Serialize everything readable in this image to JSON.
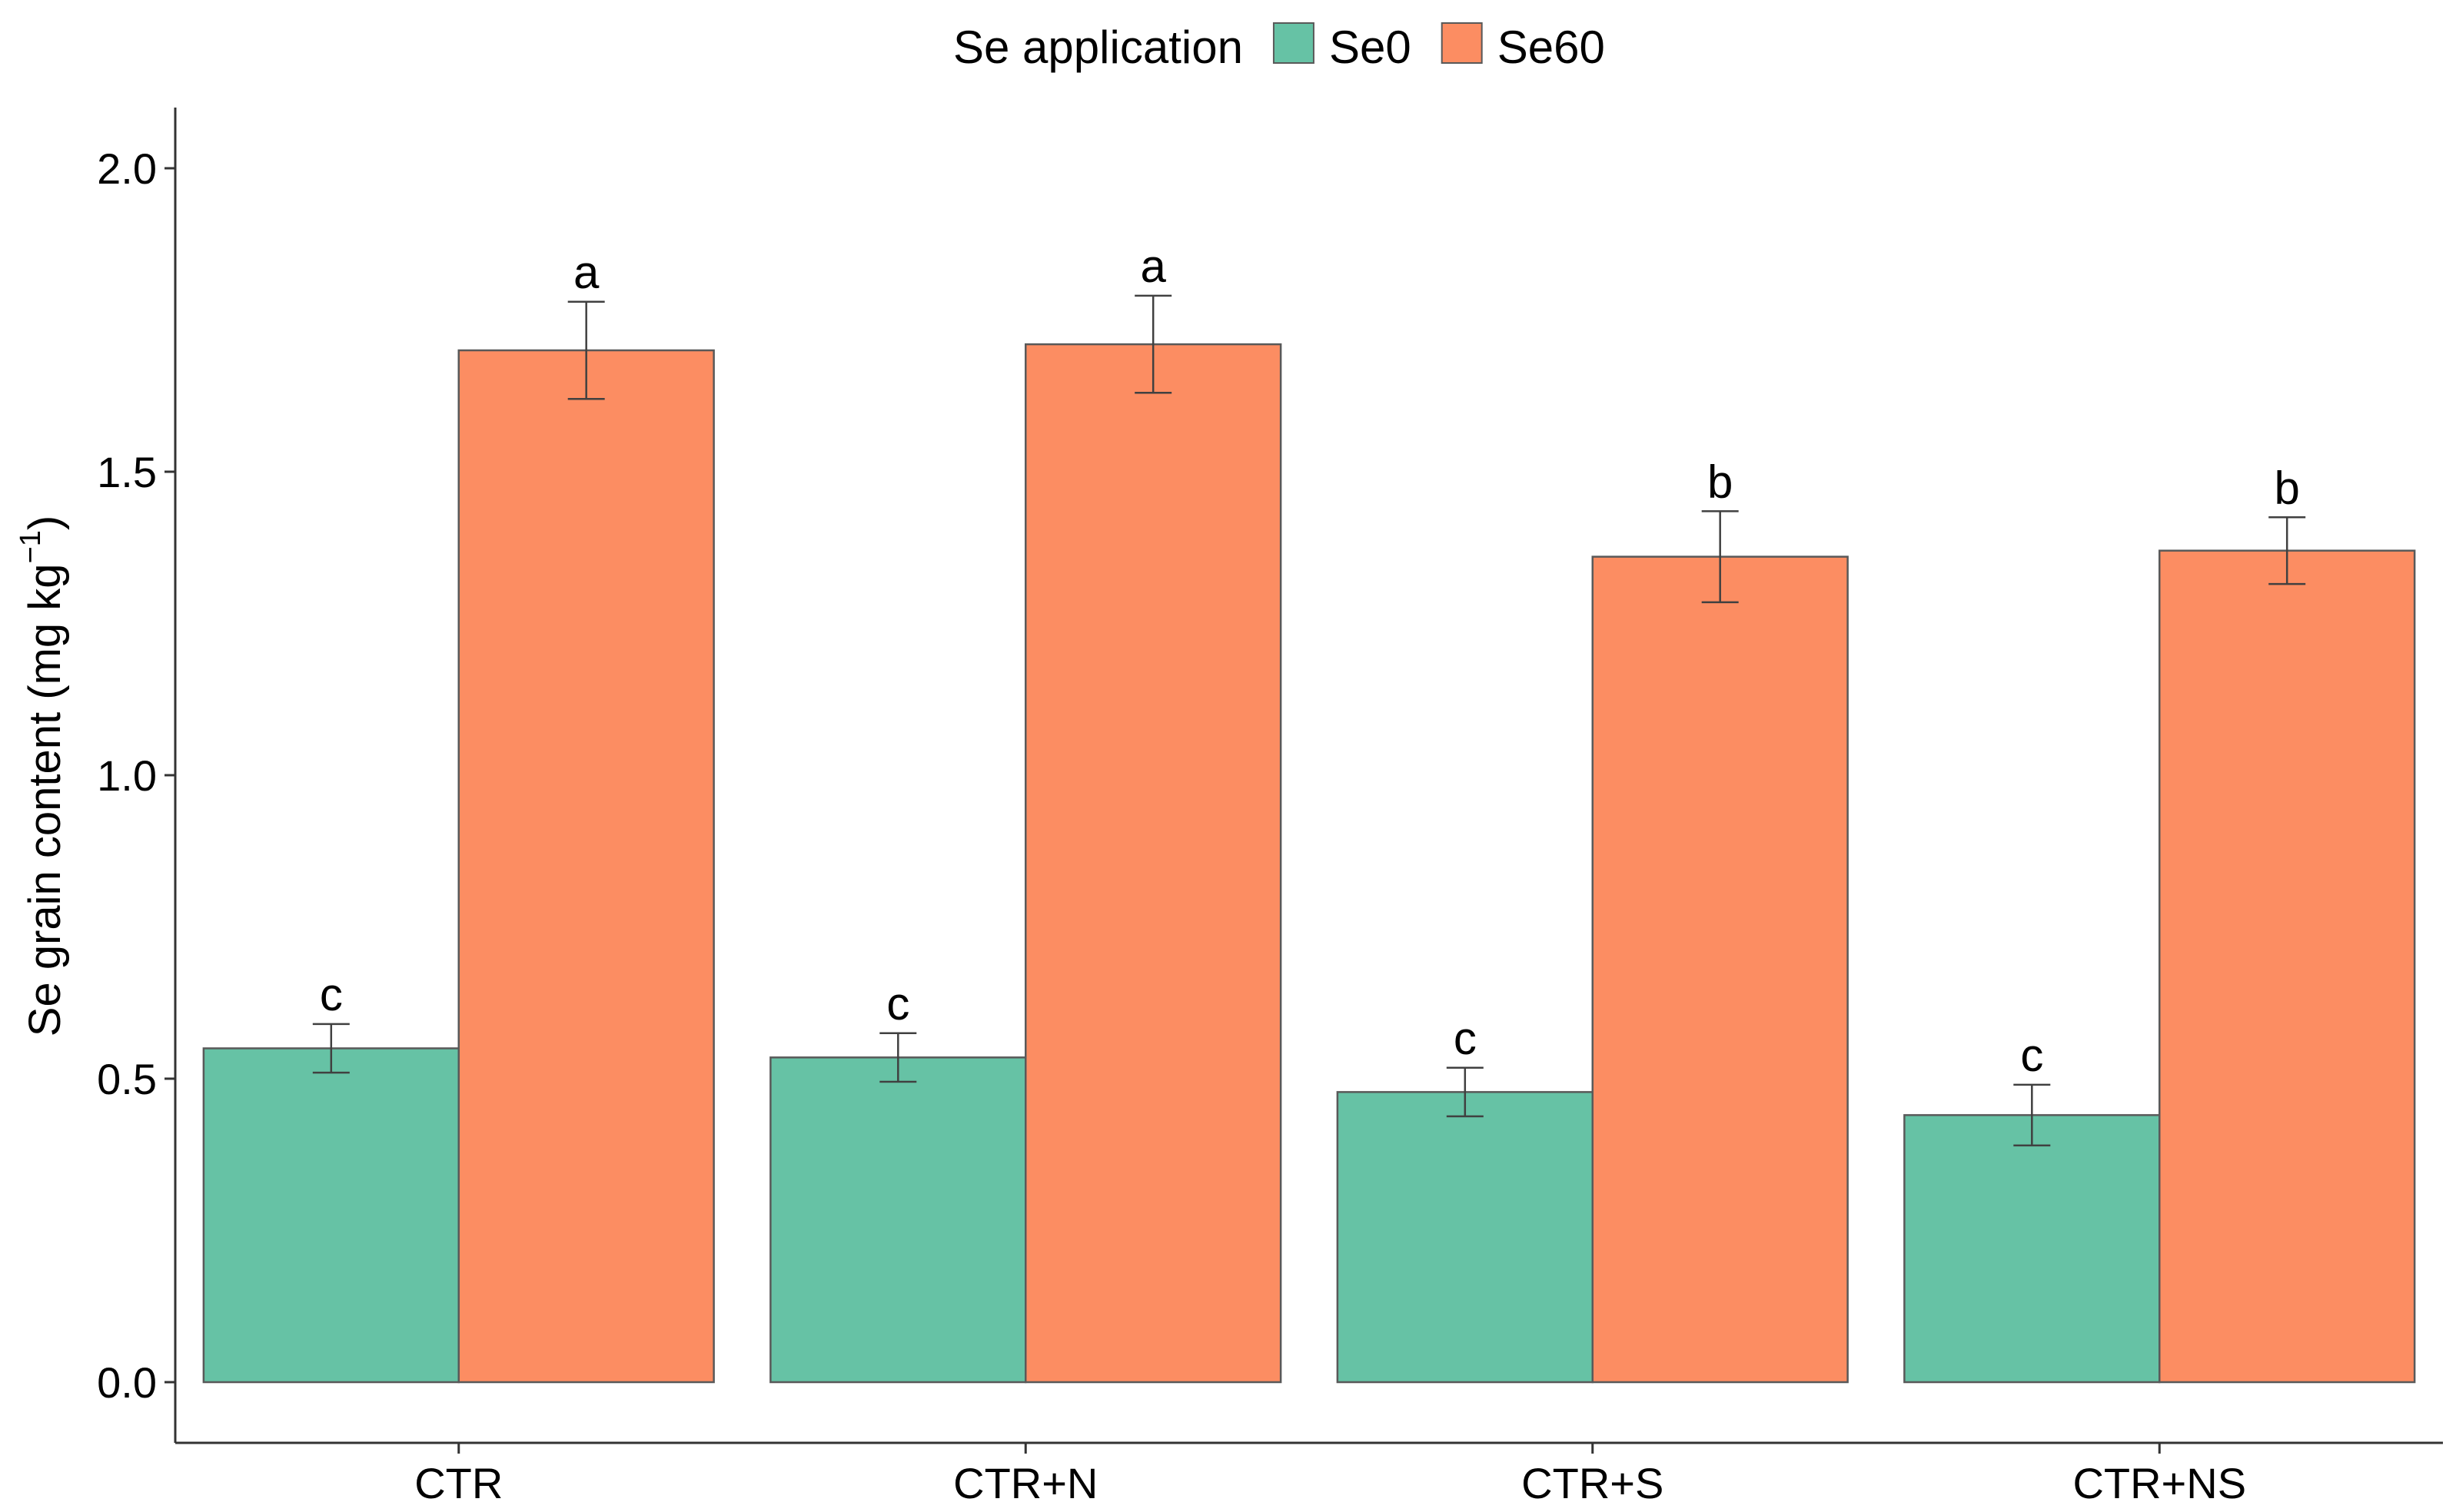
{
  "chart_data": {
    "type": "bar",
    "categories": [
      "CTR",
      "CTR+N",
      "CTR+S",
      "CTR+NS"
    ],
    "series": [
      {
        "name": "Se0",
        "color": "#66c2a5",
        "values": [
          0.55,
          0.535,
          0.478,
          0.44
        ],
        "errors": [
          0.04,
          0.04,
          0.04,
          0.05
        ],
        "labels": [
          "c",
          "c",
          "c",
          "c"
        ]
      },
      {
        "name": "Se60",
        "color": "#fc8d62",
        "values": [
          1.7,
          1.71,
          1.36,
          1.37
        ],
        "errors": [
          0.08,
          0.08,
          0.075,
          0.055
        ],
        "labels": [
          "a",
          "a",
          "b",
          "b"
        ]
      }
    ],
    "legend_title": "Se application",
    "ylabel": "Se grain content (mg kg",
    "ylabel_sup": "−1",
    "ylabel_end": ")",
    "xlabel": "",
    "ylim": [
      -0.1,
      2.1
    ],
    "yticks": [
      "0.0",
      "0.5",
      "1.0",
      "1.5",
      "2.0"
    ],
    "legend_position": "top",
    "grid": false
  }
}
